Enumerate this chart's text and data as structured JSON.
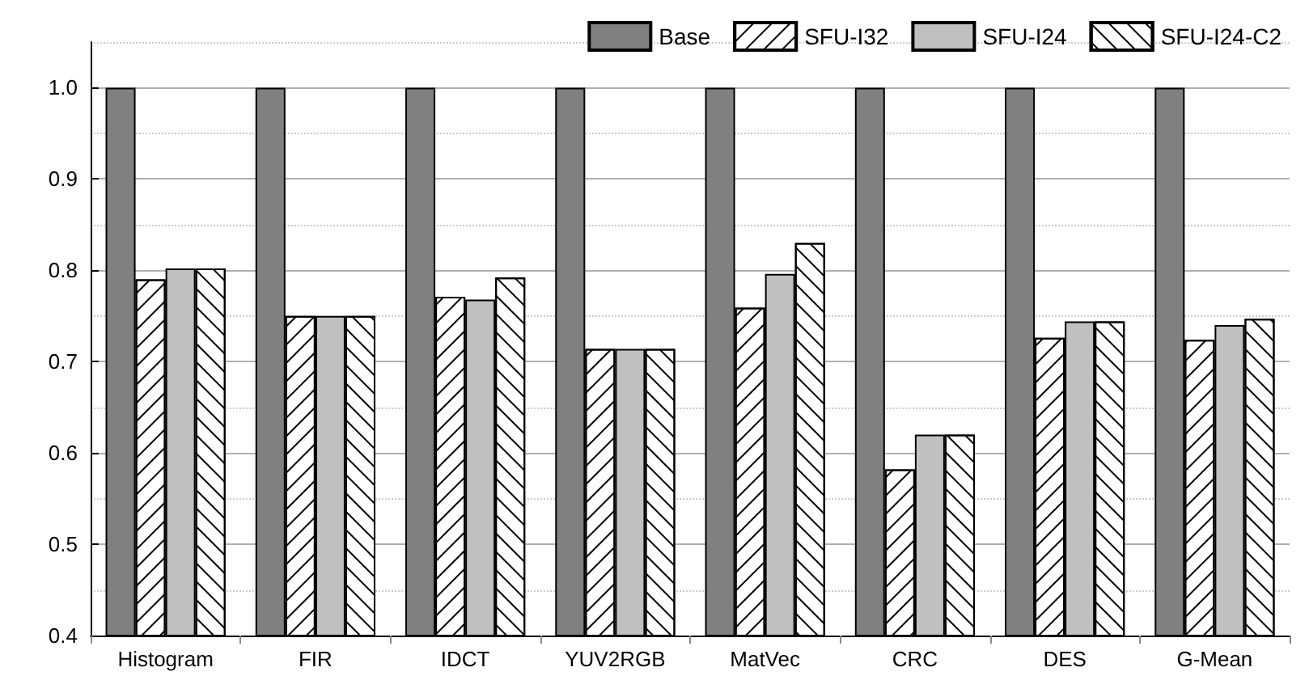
{
  "chart_data": {
    "type": "bar",
    "categories": [
      "Histogram",
      "FIR",
      "IDCT",
      "YUV2RGB",
      "MatVec",
      "CRC",
      "DES",
      "G-Mean"
    ],
    "series": [
      {
        "name": "Base",
        "color": "#808080",
        "values": [
          1.0,
          1.0,
          1.0,
          1.0,
          1.0,
          1.0,
          1.0,
          1.0
        ]
      },
      {
        "name": "SFU-I32",
        "color": "#ffffff",
        "values": [
          0.79,
          0.75,
          0.771,
          0.714,
          0.759,
          0.582,
          0.726,
          0.724
        ]
      },
      {
        "name": "SFU-I24",
        "color": "#c0c0c0",
        "values": [
          0.802,
          0.75,
          0.768,
          0.714,
          0.796,
          0.62,
          0.744,
          0.74
        ]
      },
      {
        "name": "SFU-I24-C2",
        "color": "#ffffff",
        "values": [
          0.802,
          0.75,
          0.792,
          0.714,
          0.83,
          0.62,
          0.744,
          0.747
        ]
      }
    ],
    "ylim": [
      0.4,
      1.05
    ],
    "yticks": [
      0.4,
      0.5,
      0.6,
      0.7,
      0.8,
      0.9,
      {
        "value": 1.0,
        "label": "1.0"
      }
    ],
    "grid": "y",
    "legend": "top right"
  }
}
